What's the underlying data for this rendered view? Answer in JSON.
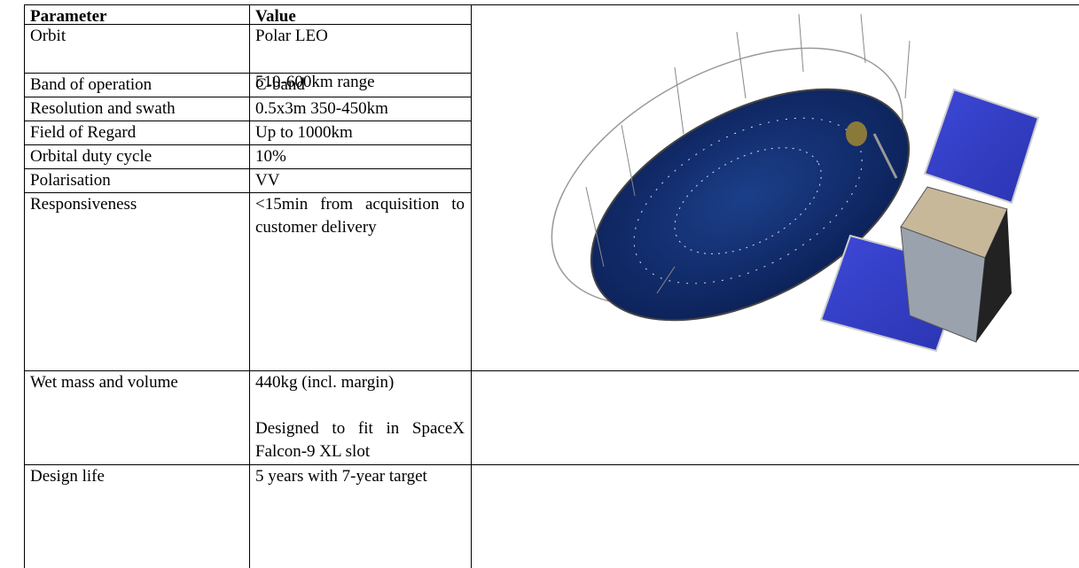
{
  "table": {
    "header": [
      "Parameter",
      "Value"
    ],
    "rows": [
      {
        "parameter": "Orbit",
        "value": [
          "Polar LEO",
          "510-600km range"
        ]
      },
      {
        "parameter": "Band of operation",
        "value": [
          "C-band"
        ]
      },
      {
        "parameter": "Resolution and swath",
        "value": [
          "0.5x3m 350-450km"
        ]
      },
      {
        "parameter": "Field of Regard",
        "value": [
          "Up to 1000km"
        ]
      },
      {
        "parameter": "Orbital duty cycle",
        "value": [
          "10%"
        ]
      },
      {
        "parameter": "Polarisation",
        "value": [
          "VV"
        ]
      },
      {
        "parameter": "Responsiveness",
        "value": [
          "<15min from acquisition to customer delivery"
        ]
      },
      {
        "parameter": "Wet mass and volume",
        "value": [
          "440kg (incl. margin)",
          "Designed to fit in SpaceX Falcon-9 XL slot"
        ]
      },
      {
        "parameter": "Design life",
        "value": [
          "5 years with 7-year target"
        ]
      }
    ]
  }
}
